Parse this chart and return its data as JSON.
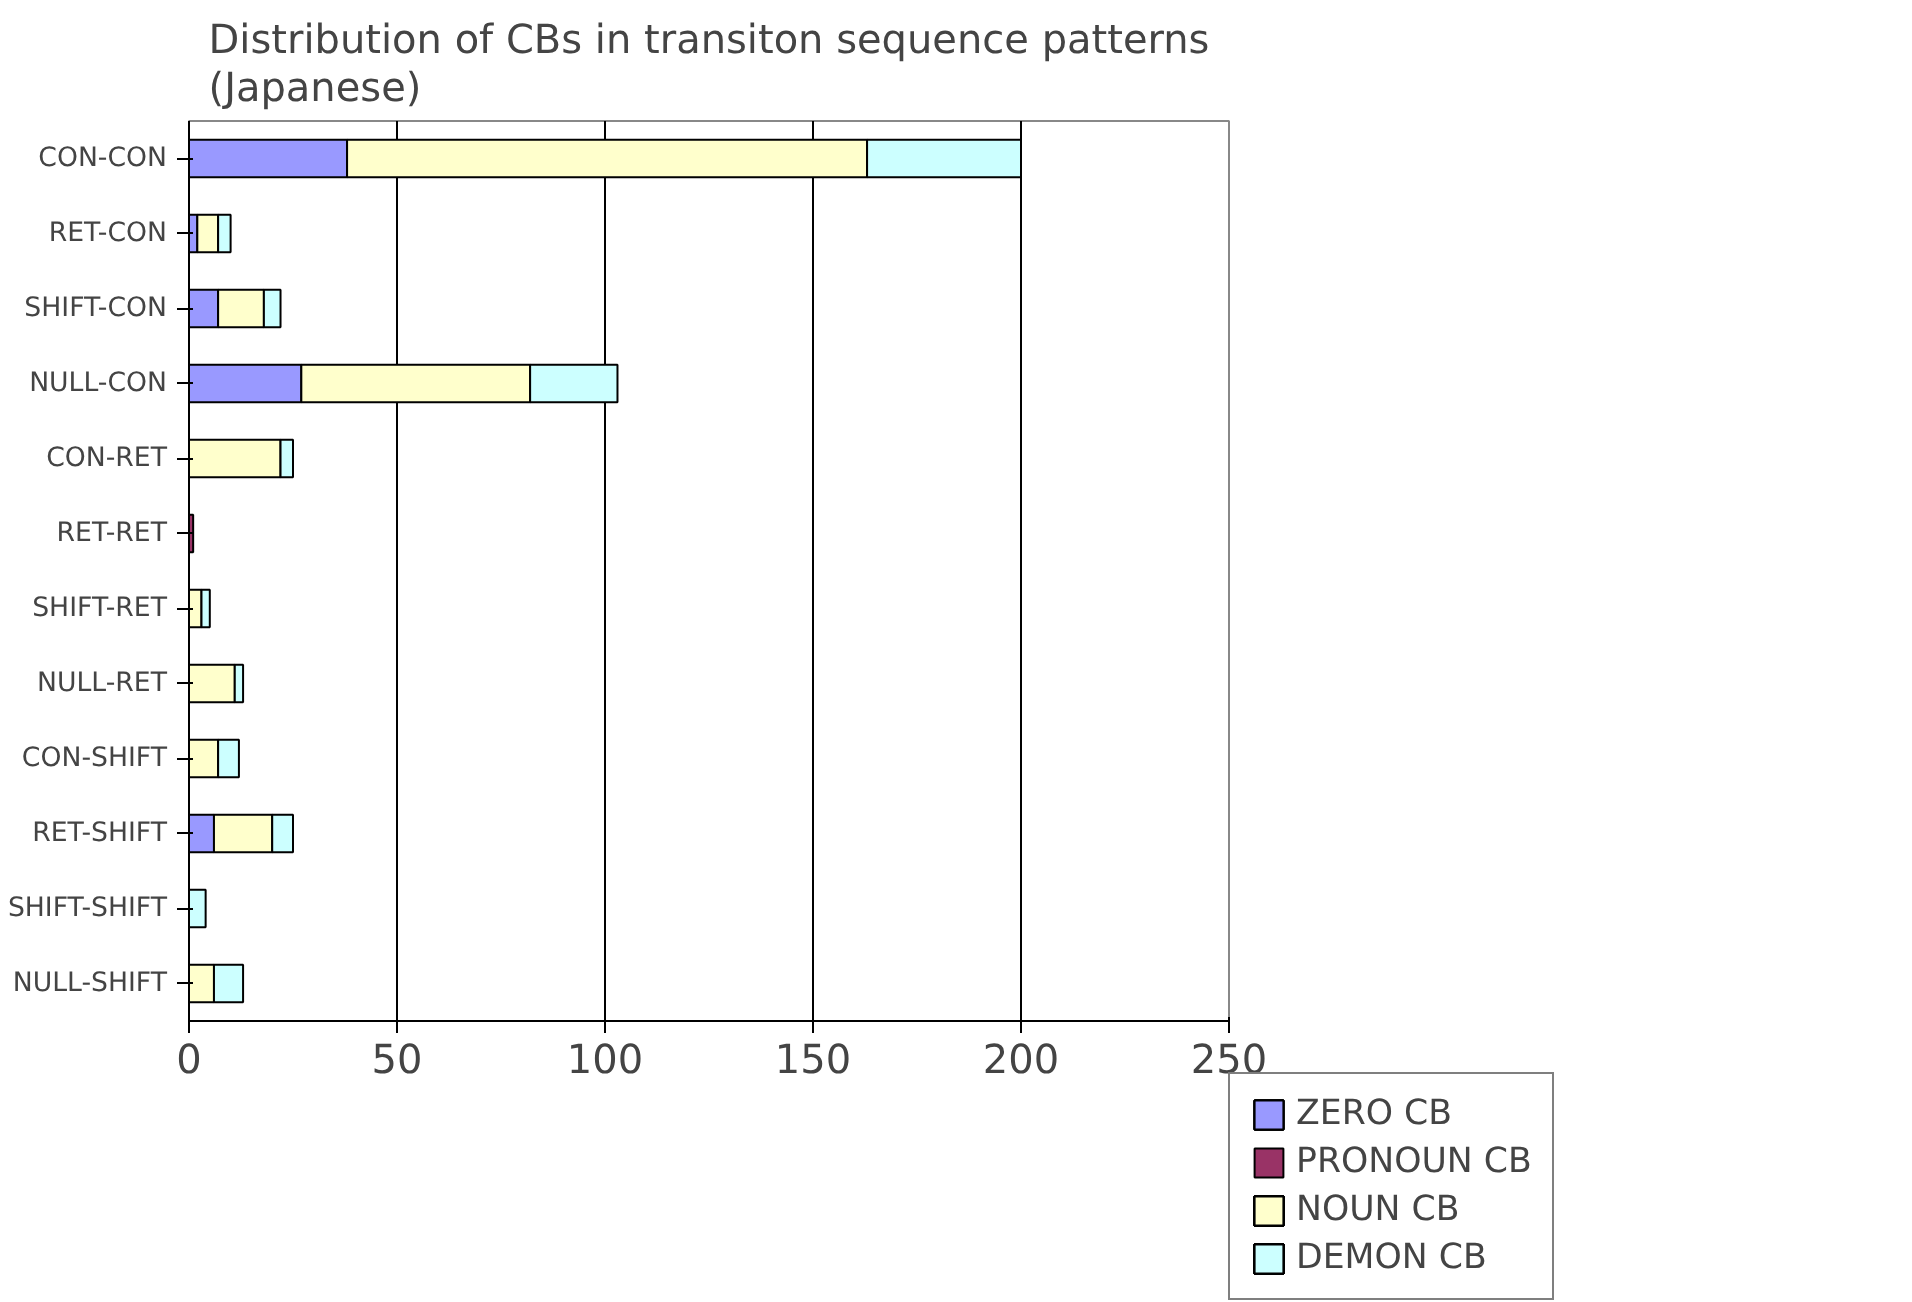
{
  "chart_data": {
    "type": "bar",
    "orientation": "horizontal",
    "stacked": true,
    "title": "Distribution of CBs in transiton sequence patterns\n(Japanese)",
    "categories": [
      "CON-CON",
      "RET-CON",
      "SHIFT-CON",
      "NULL-CON",
      "CON-RET",
      "RET-RET",
      "SHIFT-RET",
      "NULL-RET",
      "CON-SHIFT",
      "RET-SHIFT",
      "SHIFT-SHIFT",
      "NULL-SHIFT"
    ],
    "series": [
      {
        "name": "ZERO CB",
        "color": "#9999ff",
        "values": [
          38,
          2,
          7,
          27,
          0,
          0,
          0,
          0,
          0,
          6,
          0,
          0
        ]
      },
      {
        "name": "PRONOUN CB",
        "color": "#993366",
        "values": [
          0,
          0,
          0,
          0,
          0,
          1,
          0,
          0,
          0,
          0,
          0,
          0
        ]
      },
      {
        "name": "NOUN CB",
        "color": "#ffffcc",
        "values": [
          125,
          5,
          11,
          55,
          22,
          0,
          3,
          11,
          7,
          14,
          0,
          6
        ]
      },
      {
        "name": "DEMON CB",
        "color": "#ccffff",
        "values": [
          37,
          3,
          4,
          21,
          3,
          0,
          2,
          2,
          5,
          5,
          4,
          7
        ]
      }
    ],
    "xlim": [
      0,
      250
    ],
    "xticks": [
      0,
      50,
      100,
      150,
      200,
      250
    ],
    "grid": "x",
    "legend": "right"
  }
}
